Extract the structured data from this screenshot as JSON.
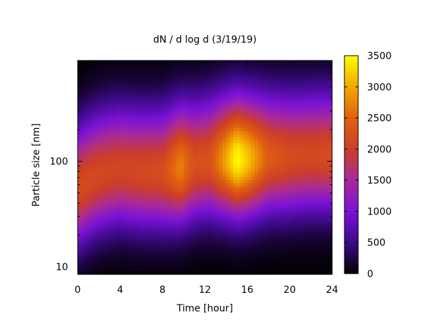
{
  "chart_data": {
    "type": "heatmap",
    "title": "dN / d log d (3/19/19)",
    "xlabel": "Time [hour]",
    "ylabel": "Particle size [nm]",
    "xlim": [
      0,
      24
    ],
    "ylim": [
      8.5,
      900
    ],
    "y_scale": "log",
    "x_ticks": [
      0,
      4,
      8,
      12,
      16,
      20,
      24
    ],
    "x_tick_labels": [
      "0",
      "4",
      "8",
      "12",
      "16",
      "20",
      "24"
    ],
    "y_ticks": [
      10,
      100
    ],
    "y_tick_labels": [
      "10",
      "100"
    ],
    "colorbar": {
      "min": 0,
      "max": 3500,
      "ticks": [
        0,
        500,
        1000,
        1500,
        2000,
        2500,
        3000,
        3500
      ],
      "tick_labels": [
        "0",
        "500",
        "1000",
        "1500",
        "2000",
        "2500",
        "3000",
        "3500"
      ],
      "palette": [
        "#000000",
        "#3d0a8a",
        "#7a12d6",
        "#a82a9a",
        "#cc3e28",
        "#e06010",
        "#f2a800",
        "#ffff00"
      ]
    },
    "mode_peak_diameter_nm": [
      {
        "t": 0,
        "d": 55
      },
      {
        "t": 2,
        "d": 75
      },
      {
        "t": 4,
        "d": 85
      },
      {
        "t": 6,
        "d": 80
      },
      {
        "t": 8,
        "d": 80
      },
      {
        "t": 10,
        "d": 90
      },
      {
        "t": 12,
        "d": 100
      },
      {
        "t": 14,
        "d": 105
      },
      {
        "t": 15,
        "d": 105
      },
      {
        "t": 16,
        "d": 105
      },
      {
        "t": 18,
        "d": 110
      },
      {
        "t": 20,
        "d": 110
      },
      {
        "t": 22,
        "d": 115
      },
      {
        "t": 24,
        "d": 115
      }
    ],
    "peak_concentration": [
      {
        "t": 0,
        "v": 2200
      },
      {
        "t": 2,
        "v": 2150
      },
      {
        "t": 4,
        "v": 2100
      },
      {
        "t": 6,
        "v": 2150
      },
      {
        "t": 8,
        "v": 2200
      },
      {
        "t": 9.7,
        "v": 2750
      },
      {
        "t": 11,
        "v": 2250
      },
      {
        "t": 12.5,
        "v": 2300
      },
      {
        "t": 14,
        "v": 3000
      },
      {
        "t": 15,
        "v": 3500
      },
      {
        "t": 16,
        "v": 3200
      },
      {
        "t": 18,
        "v": 2400
      },
      {
        "t": 20,
        "v": 2200
      },
      {
        "t": 22,
        "v": 2150
      },
      {
        "t": 24,
        "v": 2200
      }
    ]
  }
}
